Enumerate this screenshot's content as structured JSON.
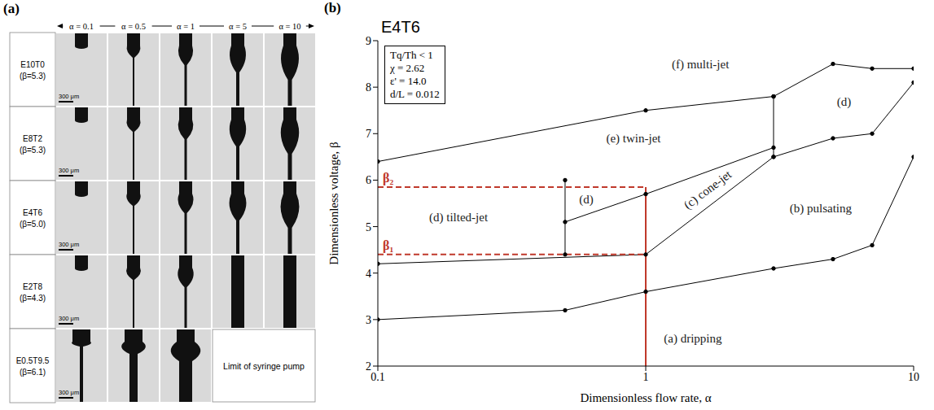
{
  "panel_a": {
    "letter": "(a)",
    "columns": [
      "α = 0.1",
      "α = 0.5",
      "α = 1",
      "α = 5",
      "α = 10"
    ],
    "scale_bar": "300 μm",
    "rows": [
      {
        "label": "E10T0",
        "beta": "(β=5.3)",
        "images": [
          true,
          true,
          true,
          true,
          true
        ]
      },
      {
        "label": "E8T2",
        "beta": "(β=5.3)",
        "images": [
          true,
          true,
          true,
          true,
          true
        ]
      },
      {
        "label": "E4T6",
        "beta": "(β=5.0)",
        "images": [
          true,
          true,
          true,
          true,
          true
        ]
      },
      {
        "label": "E2T8",
        "beta": "(β=4.3)",
        "images": [
          true,
          true,
          true,
          true,
          true
        ]
      },
      {
        "label": "E0.5T9.5",
        "beta": "(β=6.1)",
        "images": [
          true,
          true,
          true,
          false,
          false
        ],
        "note": "Limit of syringe pump"
      }
    ]
  },
  "chart_data": {
    "type": "line",
    "letter": "(b)",
    "title": "E4T6",
    "x_label": "Dimensionless flow rate, α",
    "y_label": "Dimensionless voltage, β",
    "log": "x",
    "grid": false,
    "xlim": [
      0.1,
      10
    ],
    "xticks": [
      0.1,
      1,
      10
    ],
    "ylim": [
      2,
      9
    ],
    "yticks": [
      2,
      3,
      4,
      5,
      6,
      7,
      8,
      9
    ],
    "series": [
      {
        "color": "#000000",
        "marker": "circle",
        "x": [
          0.1,
          0.5,
          1,
          3,
          5,
          7,
          10
        ],
        "values": [
          3.0,
          3.2,
          3.6,
          4.1,
          4.3,
          4.6,
          6.5
        ]
      },
      {
        "color": "#000000",
        "marker": "circle",
        "x": [
          0.1,
          1,
          3,
          5,
          7,
          10
        ],
        "values": [
          4.2,
          4.4,
          6.5,
          6.9,
          7.0,
          8.1
        ]
      },
      {
        "color": "#000000",
        "marker": "circle",
        "x": [
          0.5,
          0.5
        ],
        "values": [
          4.4,
          6.0
        ]
      },
      {
        "color": "#000000",
        "marker": "circle",
        "x": [
          0.5,
          1,
          3
        ],
        "values": [
          5.1,
          5.7,
          6.7
        ]
      },
      {
        "color": "#000000",
        "marker": "circle",
        "x": [
          0.1,
          1,
          3,
          5,
          7,
          10
        ],
        "values": [
          6.4,
          7.5,
          7.8,
          8.5,
          8.4,
          8.4
        ]
      },
      {
        "color": "#000000",
        "marker": "circle",
        "x": [
          3,
          3
        ],
        "values": [
          6.5,
          7.8
        ]
      }
    ],
    "annotations": [
      {
        "text": "(a) dripping",
        "x": 1.5,
        "y": 2.6
      },
      {
        "text": "(b) pulsating",
        "x": 4.5,
        "y": 5.4
      },
      {
        "text": "(c) cone-jet",
        "x": 1.7,
        "y": 5.8
      },
      {
        "text": "(d) tilted-jet",
        "x": 0.2,
        "y": 5.2
      },
      {
        "text": "(d)",
        "x": 0.6,
        "y": 5.6
      },
      {
        "text": "(d)",
        "x": 5.5,
        "y": 7.7
      },
      {
        "text": "(e) twin-jet",
        "x": 0.9,
        "y": 6.9
      },
      {
        "text": "(f) multi-jet",
        "x": 1.6,
        "y": 8.5
      }
    ],
    "parameters": [
      "Tq/Th < 1",
      "χ = 2.62",
      "ε' = 14.0",
      "d/L = 0.012"
    ],
    "thresholds": [
      {
        "label": "β₁",
        "value": 4.4,
        "color": "#c0392b"
      },
      {
        "label": "β₂",
        "value": 5.85,
        "color": "#c0392b"
      }
    ],
    "arrow_alpha": 1
  }
}
